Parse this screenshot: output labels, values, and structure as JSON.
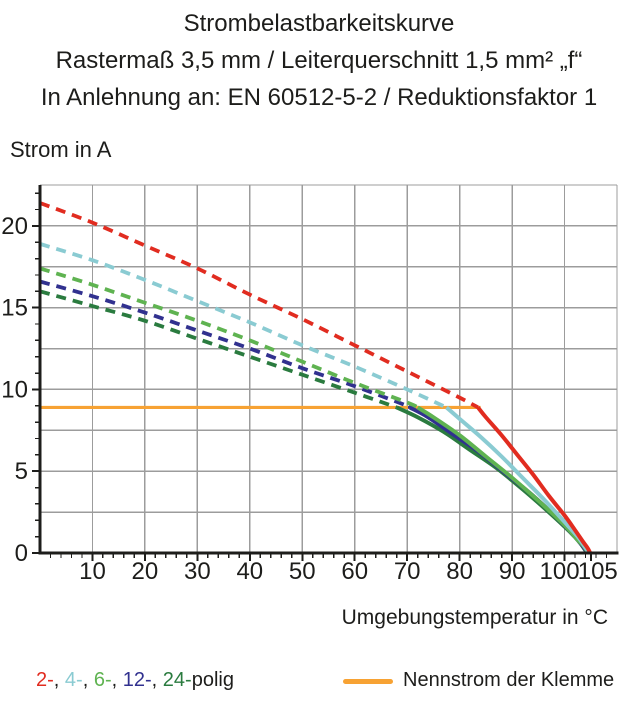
{
  "title": {
    "line1": "Strombelastbarkeitskurve",
    "line2": "Rastermaß 3,5 mm / Leiterquerschnitt 1,5 mm² „f“",
    "line3": "In Anlehnung an: EN 60512-5-2 / Reduktionsfaktor 1"
  },
  "chart_data": {
    "type": "line",
    "xlabel": "Umgebungstemperatur in °C",
    "ylabel": "Strom in A",
    "xlim": [
      0,
      110
    ],
    "ylim": [
      0,
      22.5
    ],
    "grid": {
      "x_step": 10,
      "y_step": 2.5,
      "color": "#9c9c9c",
      "on": true
    },
    "x_major_ticks": [
      {
        "v": 10,
        "label": "10"
      },
      {
        "v": 20,
        "label": "20"
      },
      {
        "v": 30,
        "label": "30"
      },
      {
        "v": 40,
        "label": "40"
      },
      {
        "v": 50,
        "label": "50"
      },
      {
        "v": 60,
        "label": "60"
      },
      {
        "v": 70,
        "label": "70"
      },
      {
        "v": 80,
        "label": "80"
      },
      {
        "v": 90,
        "label": "90"
      },
      {
        "v": 100,
        "label": "100",
        "dx": -5
      },
      {
        "v": 105,
        "label": "105",
        "dx": 7
      }
    ],
    "y_major_ticks": [
      {
        "v": 0,
        "label": "0"
      },
      {
        "v": 5,
        "label": "5"
      },
      {
        "v": 10,
        "label": "10"
      },
      {
        "v": 15,
        "label": "15"
      },
      {
        "v": 20,
        "label": "20"
      }
    ],
    "x_minor_step": 2,
    "y_minor_step": 1,
    "nominal": {
      "label": "Nennstrom der Klemme",
      "value": 8.9,
      "x_start": 0,
      "x_end": 84,
      "color": "#f7a233"
    },
    "legend_separator": ", ",
    "legend_suffix": "polig",
    "series": [
      {
        "name": "2-polig",
        "legend_label": "2-",
        "color": "#e12c20",
        "dashed_points": [
          [
            0,
            21.4
          ],
          [
            10,
            20.2
          ],
          [
            20,
            18.8
          ],
          [
            30,
            17.4
          ],
          [
            40,
            15.8
          ],
          [
            50,
            14.3
          ],
          [
            60,
            12.7
          ],
          [
            70,
            11.1
          ],
          [
            80,
            9.5
          ],
          [
            83.5,
            8.9
          ]
        ],
        "solid_points": [
          [
            83.5,
            8.9
          ],
          [
            85,
            8.3
          ],
          [
            88,
            7.2
          ],
          [
            91,
            6.0
          ],
          [
            94,
            4.8
          ],
          [
            97,
            3.5
          ],
          [
            100,
            2.3
          ],
          [
            102,
            1.4
          ],
          [
            103.5,
            0.7
          ],
          [
            104.4,
            0.3
          ],
          [
            104.9,
            0
          ]
        ]
      },
      {
        "name": "4-polig",
        "legend_label": "4-",
        "color": "#8acbd2",
        "dashed_points": [
          [
            0,
            18.9
          ],
          [
            10,
            17.9
          ],
          [
            20,
            16.7
          ],
          [
            30,
            15.4
          ],
          [
            40,
            14.1
          ],
          [
            50,
            12.7
          ],
          [
            60,
            11.4
          ],
          [
            70,
            10.0
          ],
          [
            77.5,
            8.9
          ]
        ],
        "solid_points": [
          [
            77.5,
            8.9
          ],
          [
            80,
            8.2
          ],
          [
            84,
            7.1
          ],
          [
            88,
            5.9
          ],
          [
            92,
            4.6
          ],
          [
            96,
            3.3
          ],
          [
            100,
            1.9
          ],
          [
            102.5,
            1.0
          ],
          [
            103.8,
            0.4
          ],
          [
            104.7,
            0
          ]
        ]
      },
      {
        "name": "6-polig",
        "legend_label": "6-",
        "color": "#5fb351",
        "dashed_points": [
          [
            0,
            17.4
          ],
          [
            10,
            16.4
          ],
          [
            20,
            15.3
          ],
          [
            30,
            14.2
          ],
          [
            40,
            13.0
          ],
          [
            50,
            11.7
          ],
          [
            60,
            10.4
          ],
          [
            70,
            9.2
          ],
          [
            72,
            8.9
          ]
        ],
        "solid_points": [
          [
            72,
            8.9
          ],
          [
            75,
            8.3
          ],
          [
            80,
            7.2
          ],
          [
            85,
            5.9
          ],
          [
            90,
            4.6
          ],
          [
            95,
            3.2
          ],
          [
            100,
            1.7
          ],
          [
            102.5,
            0.8
          ],
          [
            103.7,
            0.4
          ],
          [
            104.5,
            0
          ]
        ]
      },
      {
        "name": "12-polig",
        "legend_label": "12-",
        "color": "#31318f",
        "dashed_points": [
          [
            0,
            16.6
          ],
          [
            10,
            15.7
          ],
          [
            20,
            14.7
          ],
          [
            30,
            13.6
          ],
          [
            40,
            12.5
          ],
          [
            50,
            11.3
          ],
          [
            60,
            10.2
          ],
          [
            70,
            9.0
          ],
          [
            70.5,
            8.9
          ]
        ],
        "solid_points": [
          [
            70.5,
            8.9
          ],
          [
            74,
            8.3
          ],
          [
            79,
            7.2
          ],
          [
            84,
            6.1
          ],
          [
            89,
            4.8
          ],
          [
            94,
            3.5
          ],
          [
            99,
            2.0
          ],
          [
            102,
            1.0
          ],
          [
            103.5,
            0.4
          ],
          [
            104.4,
            0
          ]
        ]
      },
      {
        "name": "24-polig",
        "legend_label": "24-",
        "color": "#2a7b3f",
        "dashed_points": [
          [
            0,
            16.0
          ],
          [
            10,
            15.1
          ],
          [
            20,
            14.2
          ],
          [
            30,
            13.1
          ],
          [
            40,
            12.0
          ],
          [
            50,
            10.9
          ],
          [
            60,
            9.8
          ],
          [
            68,
            8.9
          ]
        ],
        "solid_points": [
          [
            68,
            8.9
          ],
          [
            72,
            8.3
          ],
          [
            77,
            7.4
          ],
          [
            82,
            6.3
          ],
          [
            87,
            5.2
          ],
          [
            92,
            3.9
          ],
          [
            97,
            2.5
          ],
          [
            101,
            1.3
          ],
          [
            103,
            0.6
          ],
          [
            104.3,
            0
          ]
        ]
      }
    ]
  }
}
